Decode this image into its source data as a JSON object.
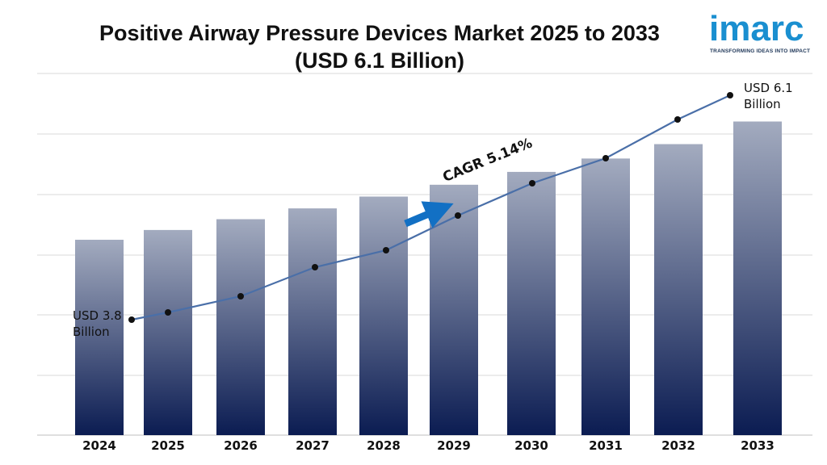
{
  "header": {
    "title_line1": "Positive Airway Pressure Devices Market 2025 to 2033",
    "title_line2": "(USD 6.1 Billion)"
  },
  "logo": {
    "word": "imarc",
    "tagline": "TRANSFORMING IDEAS INTO IMPACT",
    "color": "#1a8fd0"
  },
  "annotations": {
    "start_value": "USD 3.8",
    "start_unit": "Billion",
    "end_value": "USD 6.1",
    "end_unit": "Billion",
    "cagr": "CAGR 5.14%"
  },
  "chart_data": {
    "type": "bar",
    "title": "Positive Airway Pressure Devices Market 2025 to 2033 (USD 6.1 Billion)",
    "categories": [
      "2024",
      "2025",
      "2026",
      "2027",
      "2028",
      "2029",
      "2030",
      "2031",
      "2032",
      "2033"
    ],
    "values": [
      3.8,
      3.99,
      4.2,
      4.41,
      4.64,
      4.87,
      5.12,
      5.38,
      5.66,
      6.1
    ],
    "ylim": [
      0,
      7.05
    ],
    "xlabel": "",
    "ylabel": "",
    "grid": true,
    "overlay_line": true,
    "colors": {
      "bar_top": "#a3abbf",
      "bar_bottom": "#0b1c52",
      "line": "#4a6fa8",
      "marker": "#111111",
      "arrow": "#1270c4",
      "grid": "#d9d9d9"
    }
  }
}
